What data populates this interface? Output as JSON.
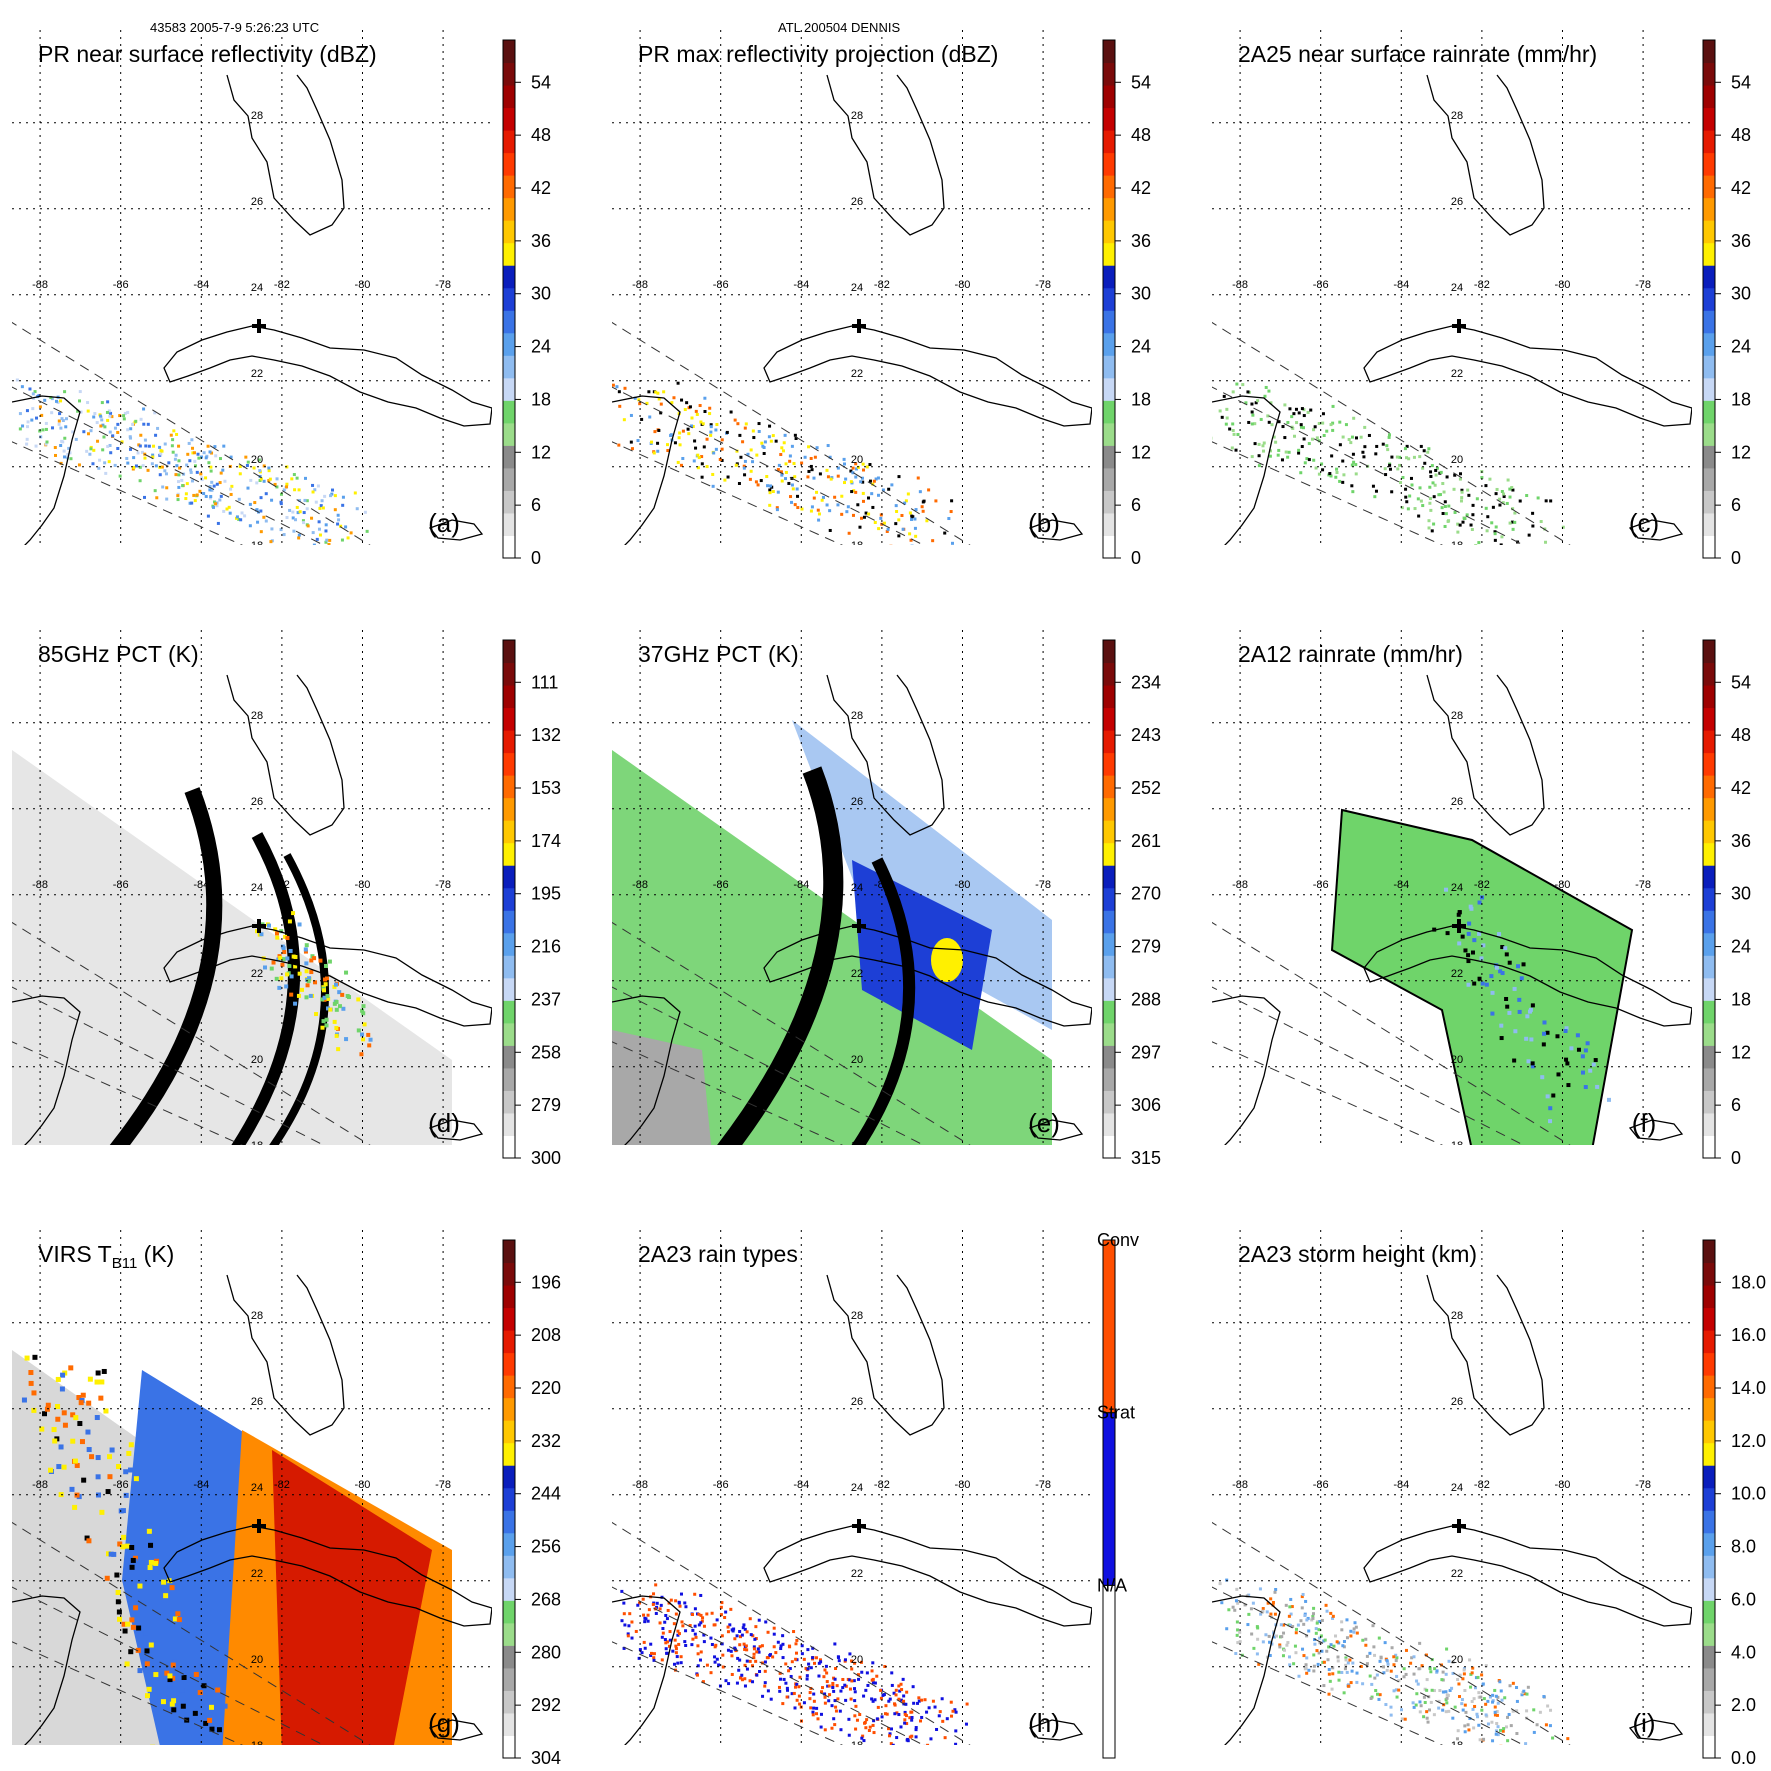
{
  "header": {
    "left": "43583 2005-7-9 5:26:23 UTC",
    "center": "ATL 200504 DENNIS"
  },
  "geo_labels": {
    "lon": [
      "-88",
      "-86",
      "-84",
      "-82",
      "-80",
      "-78"
    ],
    "lat": [
      "28",
      "26",
      "24",
      "22",
      "20",
      "18"
    ]
  },
  "colors": {
    "reflectivity_ramp": [
      "#ffffff",
      "#e4e4e4",
      "#c8c8c8",
      "#a8a8a8",
      "#8a8a8a",
      "#9bdc8a",
      "#6fd46a",
      "#c7d8f5",
      "#8fbcf0",
      "#5aa0ec",
      "#3a73e6",
      "#1d3fd6",
      "#0a1ebc",
      "#fff000",
      "#ffc800",
      "#ff9a00",
      "#ff6a00",
      "#ff3a00",
      "#e51a00",
      "#c40000",
      "#9e0000",
      "#7a0a0a",
      "#5a1010"
    ],
    "rain_types": [
      "#ffffff",
      "#1010e0",
      "#ff4e00"
    ],
    "coast": "#000000"
  },
  "panels": [
    {
      "id": "a",
      "title": "PR near surface reflectivity (dBZ)",
      "label": "(a)",
      "colorbar": {
        "ticks": [
          "0",
          "6",
          "12",
          "18",
          "24",
          "30",
          "36",
          "42",
          "48",
          "54"
        ],
        "type": "continuous"
      }
    },
    {
      "id": "b",
      "title": "PR max reflectivity projection (dBZ)",
      "label": "(b)",
      "colorbar": {
        "ticks": [
          "0",
          "6",
          "12",
          "18",
          "24",
          "30",
          "36",
          "42",
          "48",
          "54"
        ],
        "type": "continuous"
      }
    },
    {
      "id": "c",
      "title": "2A25 near surface rainrate (mm/hr)",
      "label": "(c)",
      "colorbar": {
        "ticks": [
          "0",
          "6",
          "12",
          "18",
          "24",
          "30",
          "36",
          "42",
          "48",
          "54"
        ],
        "type": "continuous"
      }
    },
    {
      "id": "d",
      "title": "85GHz PCT (K)",
      "label": "(d)",
      "colorbar": {
        "ticks": [
          "300",
          "279",
          "258",
          "237",
          "216",
          "195",
          "174",
          "153",
          "132",
          "111"
        ],
        "type": "continuous"
      }
    },
    {
      "id": "e",
      "title": "37GHz PCT (K)",
      "label": "(e)",
      "colorbar": {
        "ticks": [
          "315",
          "306",
          "297",
          "288",
          "279",
          "270",
          "261",
          "252",
          "243",
          "234"
        ],
        "type": "continuous"
      }
    },
    {
      "id": "f",
      "title": "2A12 rainrate (mm/hr)",
      "label": "(f)",
      "colorbar": {
        "ticks": [
          "0",
          "6",
          "12",
          "18",
          "24",
          "30",
          "36",
          "42",
          "48",
          "54"
        ],
        "type": "continuous"
      }
    },
    {
      "id": "g",
      "title": "VIRS T",
      "title_sub": "B11",
      "title_suffix": " (K)",
      "label": "(g)",
      "colorbar": {
        "ticks": [
          "304",
          "292",
          "280",
          "268",
          "256",
          "244",
          "232",
          "220",
          "208",
          "196"
        ],
        "type": "continuous"
      }
    },
    {
      "id": "h",
      "title": "2A23 rain types",
      "label": "(h)",
      "colorbar": {
        "ticks": [
          "N/A",
          "Strat",
          "Conv"
        ],
        "type": "categorical"
      }
    },
    {
      "id": "i",
      "title": "2A23 storm height (km)",
      "label": "(i)",
      "colorbar": {
        "ticks": [
          "0.0",
          "2.0",
          "4.0",
          "6.0",
          "8.0",
          "10.0",
          "12.0",
          "14.0",
          "16.0",
          "18.0"
        ],
        "type": "continuous"
      }
    }
  ]
}
